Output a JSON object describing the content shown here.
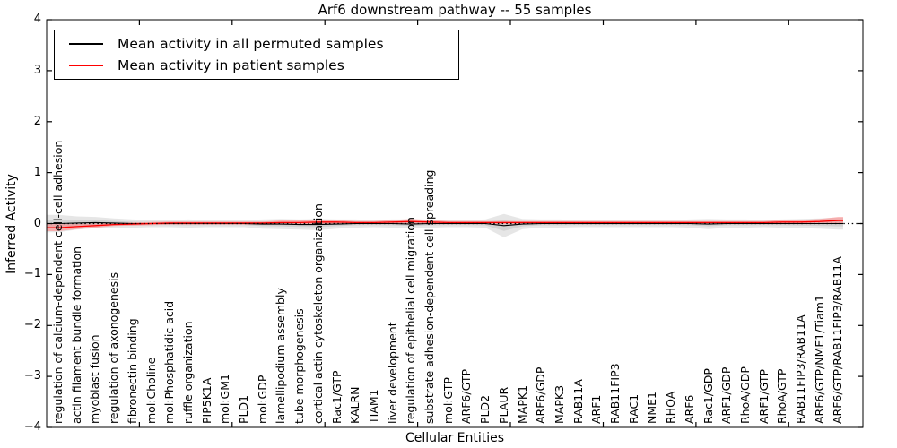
{
  "chart_data": {
    "type": "line",
    "title": "Arf6 downstream pathway -- 55 samples",
    "xlabel": "Cellular Entities",
    "ylabel": "Inferred Activity",
    "ylim": [
      -4,
      4
    ],
    "yticks": [
      "4",
      "3",
      "2",
      "1",
      "0",
      "−1",
      "−2",
      "−3",
      "−4"
    ],
    "grid": false,
    "legend_position": "upper left",
    "zero_line": {
      "y": 0,
      "style": "dotted",
      "color": "#000000"
    },
    "categories": [
      "regulation of calcium-dependent cell-cell adhesion",
      "actin filament bundle formation",
      "myoblast fusion",
      "regulation of axonogenesis",
      "fibronectin binding",
      "mol:Choline",
      "mol:Phosphatidic acid",
      "ruffle organization",
      "PIP5K1A",
      "mol:GM1",
      "PLD1",
      "mol:GDP",
      "lamellipodium assembly",
      "tube morphogenesis",
      "cortical actin cytoskeleton organization",
      "Rac1/GTP",
      "KALRN",
      "TIAM1",
      "liver development",
      "regulation of epithelial cell migration",
      "substrate adhesion-dependent cell spreading",
      "mol:GTP",
      "ARF6/GTP",
      "PLD2",
      "PLAUR",
      "MAPK1",
      "ARF6/GDP",
      "MAPK3",
      "RAB11A",
      "ARF1",
      "RAB11FIP3",
      "RAC1",
      "NME1",
      "RHOA",
      "ARF6",
      "Rac1/GDP",
      "ARF1/GDP",
      "RhoA/GDP",
      "ARF1/GTP",
      "RhoA/GTP",
      "RAB11FIP3/RAB11A",
      "ARF6/GTP/NME1/Tiam1",
      "ARF6/GTP/RAB11FIP3/RAB11A"
    ],
    "series": [
      {
        "name": "Mean activity in all permuted samples",
        "color": "#000000",
        "values": [
          0.0,
          0.01,
          0.02,
          0.01,
          0.0,
          0.0,
          0.0,
          0.0,
          0.0,
          0.0,
          0.0,
          -0.01,
          -0.01,
          -0.02,
          -0.02,
          -0.01,
          0.0,
          0.0,
          0.0,
          -0.01,
          0.0,
          0.0,
          0.0,
          0.0,
          -0.04,
          -0.01,
          0.0,
          0.0,
          0.0,
          0.0,
          0.0,
          0.0,
          0.0,
          0.0,
          0.0,
          -0.01,
          0.0,
          0.0,
          0.0,
          0.0,
          0.0,
          0.0,
          0.0
        ],
        "band_halfwidth": [
          0.17,
          0.13,
          0.11,
          0.09,
          0.08,
          0.07,
          0.07,
          0.08,
          0.07,
          0.07,
          0.07,
          0.09,
          0.1,
          0.1,
          0.11,
          0.09,
          0.08,
          0.07,
          0.08,
          0.09,
          0.08,
          0.07,
          0.07,
          0.08,
          0.23,
          0.1,
          0.08,
          0.08,
          0.07,
          0.07,
          0.07,
          0.07,
          0.07,
          0.07,
          0.08,
          0.1,
          0.08,
          0.08,
          0.07,
          0.08,
          0.09,
          0.1,
          0.12
        ],
        "band_color": "#c8c8c8"
      },
      {
        "name": "Mean activity in patient samples",
        "color": "#ff0000",
        "values": [
          -0.08,
          -0.06,
          -0.04,
          -0.02,
          -0.01,
          0.0,
          0.01,
          0.01,
          0.01,
          0.01,
          0.01,
          0.01,
          0.02,
          0.02,
          0.03,
          0.03,
          0.02,
          0.02,
          0.03,
          0.04,
          0.03,
          0.02,
          0.02,
          0.02,
          0.02,
          0.02,
          0.02,
          0.02,
          0.02,
          0.02,
          0.02,
          0.02,
          0.02,
          0.02,
          0.02,
          0.02,
          0.02,
          0.02,
          0.02,
          0.03,
          0.03,
          0.04,
          0.06
        ],
        "band_halfwidth": [
          0.07,
          0.05,
          0.04,
          0.03,
          0.03,
          0.03,
          0.03,
          0.03,
          0.03,
          0.03,
          0.03,
          0.03,
          0.04,
          0.04,
          0.05,
          0.04,
          0.03,
          0.03,
          0.04,
          0.05,
          0.04,
          0.03,
          0.03,
          0.03,
          0.03,
          0.03,
          0.03,
          0.03,
          0.03,
          0.03,
          0.03,
          0.03,
          0.03,
          0.03,
          0.03,
          0.03,
          0.03,
          0.03,
          0.03,
          0.04,
          0.04,
          0.05,
          0.07
        ],
        "band_color": "#ff8080"
      }
    ]
  },
  "colors": {
    "background": "#ffffff",
    "frame": "#000000",
    "permuted_line": "#000000",
    "patient_line": "#ff0000",
    "permuted_band": "#c8c8c8",
    "patient_band": "#ff8080"
  }
}
